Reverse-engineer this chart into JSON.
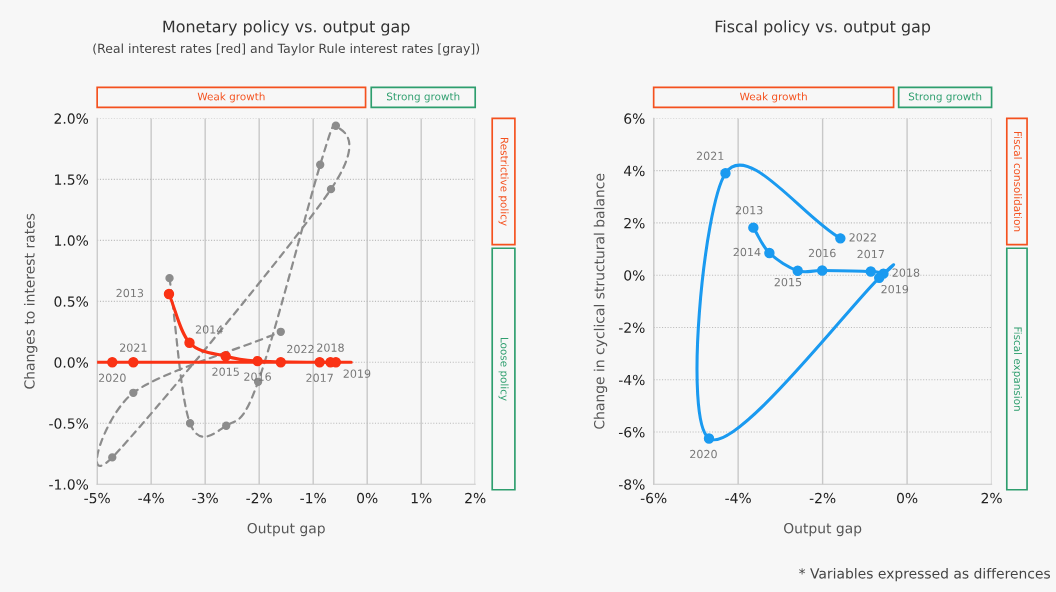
{
  "chart_data": [
    {
      "type": "line",
      "title": "Monetary policy vs. output gap",
      "subtitle": "(Real interest rates [red] and Taylor Rule interest rates [gray])",
      "xlabel": "Output gap",
      "ylabel": "Changes to interest rates",
      "xlim": [
        -5,
        2
      ],
      "xticks": [
        {
          "value": -5,
          "label": "-5%"
        },
        {
          "value": -4,
          "label": "-4%"
        },
        {
          "value": -3,
          "label": "-3%"
        },
        {
          "value": -2,
          "label": "-2%"
        },
        {
          "value": -1,
          "label": "-1%"
        },
        {
          "value": 0,
          "label": "0%"
        },
        {
          "value": 1,
          "label": "1%"
        },
        {
          "value": 2,
          "label": "2%"
        }
      ],
      "ylim": [
        -1,
        2
      ],
      "yticks": [
        {
          "value": -1,
          "label": "-1.0%"
        },
        {
          "value": -0.5,
          "label": "-0.5%"
        },
        {
          "value": 0,
          "label": "0.0%"
        },
        {
          "value": 0.5,
          "label": "0.5%"
        },
        {
          "value": 1,
          "label": "1.0%"
        },
        {
          "value": 1.5,
          "label": "1.5%"
        },
        {
          "value": 2,
          "label": "2.0%"
        }
      ],
      "grid": true,
      "legend": false,
      "marker": "circle",
      "series": [
        {
          "color": "#8c8c8c",
          "line_style": "dashed",
          "x": [
            -3.66,
            -3.28,
            -2.61,
            -2.02,
            -0.87,
            -0.58,
            -0.67,
            -4.72,
            -4.33,
            -1.6
          ],
          "values": [
            0.69,
            -0.5,
            -0.52,
            -0.16,
            1.62,
            1.94,
            1.42,
            -0.78,
            -0.25,
            0.25
          ]
        },
        {
          "color": "#fa3214",
          "line_style": "solid",
          "x": [
            -3.67,
            -3.29,
            -2.62,
            -2.03,
            -0.88,
            -0.68,
            -0.58,
            -4.72,
            -4.33,
            -1.6
          ],
          "values": [
            0.56,
            0.16,
            0.05,
            0.01,
            0,
            0,
            0,
            0,
            0,
            0
          ]
        }
      ],
      "annotations": [
        "Weak growth",
        "Strong growth",
        "Restrictive policy",
        "Loose policy",
        {
          "text": "2013",
          "x": -3.67,
          "y": 0.56
        },
        {
          "text": "2014",
          "x": -3.29,
          "y": 0.16
        },
        {
          "text": "2015",
          "x": -2.62,
          "y": 0.05
        },
        {
          "text": "2016",
          "x": -2.03,
          "y": 0.01
        },
        {
          "text": "2017",
          "x": -0.88,
          "y": 0
        },
        {
          "text": "2018",
          "x": -0.68,
          "y": 0
        },
        {
          "text": "2019",
          "x": -0.58,
          "y": 0
        },
        {
          "text": "2020",
          "x": -4.72,
          "y": 0
        },
        {
          "text": "2021",
          "x": -4.33,
          "y": 0
        },
        {
          "text": "2022",
          "x": -1.6,
          "y": 0
        }
      ]
    },
    {
      "type": "line",
      "title": "Fiscal policy vs. output gap",
      "xlabel": "Output gap",
      "ylabel": "Change in cyclical structural balance",
      "xlim": [
        -6,
        2
      ],
      "xticks": [
        {
          "value": -6,
          "label": "-6%"
        },
        {
          "value": -4,
          "label": "-4%"
        },
        {
          "value": -2,
          "label": "-2%"
        },
        {
          "value": 0,
          "label": "0%"
        },
        {
          "value": 2,
          "label": "2%"
        }
      ],
      "ylim": [
        -8,
        6
      ],
      "yticks": [
        {
          "value": -8,
          "label": "-8%"
        },
        {
          "value": -6,
          "label": "-6%"
        },
        {
          "value": -4,
          "label": "-4%"
        },
        {
          "value": -2,
          "label": "-2%"
        },
        {
          "value": 0,
          "label": "0%"
        },
        {
          "value": 2,
          "label": "2%"
        },
        {
          "value": 4,
          "label": "4%"
        },
        {
          "value": 6,
          "label": "6%"
        }
      ],
      "grid": true,
      "legend": false,
      "marker": "circle",
      "series": [
        {
          "color": "#1a9af0",
          "line_style": "solid",
          "x": [
            -3.64,
            -3.26,
            -2.59,
            -2.01,
            -0.86,
            -0.56,
            -0.66,
            -4.69,
            -4.3,
            -1.58
          ],
          "values": [
            1.82,
            0.85,
            0.17,
            0.18,
            0.14,
            0.06,
            -0.1,
            -6.25,
            3.9,
            1.41
          ]
        }
      ],
      "annotations": [
        "Weak growth",
        "Strong growth",
        "Fiscal consolidation",
        "Fiscal expansion",
        "* Variables expressed as differences",
        {
          "text": "2013",
          "x": -3.64,
          "y": 1.82
        },
        {
          "text": "2014",
          "x": -3.26,
          "y": 0.85
        },
        {
          "text": "2015",
          "x": -2.59,
          "y": 0.17
        },
        {
          "text": "2016",
          "x": -2.01,
          "y": 0.18
        },
        {
          "text": "2017",
          "x": -0.86,
          "y": 0.14
        },
        {
          "text": "2018",
          "x": -0.56,
          "y": 0.06
        },
        {
          "text": "2019",
          "x": -0.66,
          "y": -0.1
        },
        {
          "text": "2020",
          "x": -4.69,
          "y": -6.25
        },
        {
          "text": "2021",
          "x": -4.3,
          "y": 3.9
        },
        {
          "text": "2022",
          "x": -1.58,
          "y": 1.41
        }
      ]
    }
  ]
}
